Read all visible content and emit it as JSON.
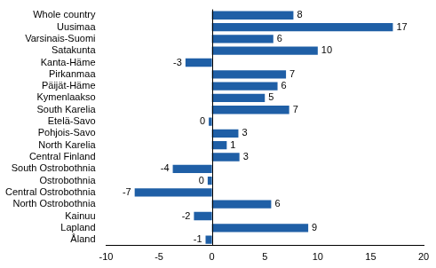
{
  "chart_data": {
    "type": "bar",
    "orientation": "horizontal",
    "categories": [
      "Whole country",
      "Uusimaa",
      "Varsinais-Suomi",
      "Satakunta",
      "Kanta-Häme",
      "Pirkanmaa",
      "Päijät-Häme",
      "Kymenlaakso",
      "South Karelia",
      "Etelä-Savo",
      "Pohjois-Savo",
      "North Karelia",
      "Central Finland",
      "South Ostrobothnia",
      "Ostrobothnia",
      "Central Ostrobothnia",
      "North Ostrobothnia",
      "Kainuu",
      "Lapland",
      "Åland"
    ],
    "values": [
      7.7,
      17.1,
      5.8,
      10.0,
      -2.5,
      7.0,
      6.2,
      5.0,
      7.3,
      -0.3,
      2.5,
      1.4,
      2.6,
      -3.7,
      -0.4,
      -7.3,
      5.6,
      -1.7,
      9.1,
      -0.6
    ],
    "value_labels": [
      "8",
      "17",
      "6",
      "10",
      "-3",
      "7",
      "6",
      "5",
      "7",
      "0",
      "3",
      "1",
      "3",
      "-4",
      "0",
      "-7",
      "6",
      "-2",
      "9",
      "-1"
    ],
    "color": "#1f5fa6",
    "xlim": [
      -10,
      20
    ],
    "xticks": [
      -10,
      -5,
      0,
      5,
      10,
      15,
      20
    ],
    "grid": false,
    "data_labels": true
  }
}
